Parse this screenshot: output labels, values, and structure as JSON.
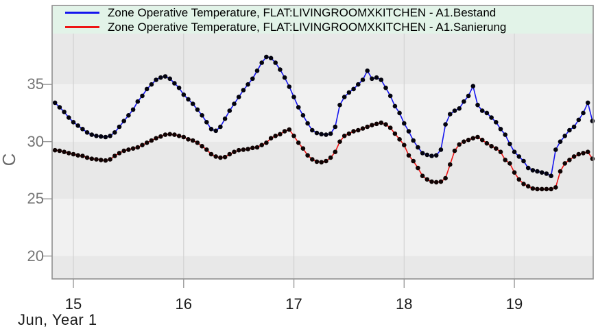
{
  "figure": {
    "background": "#ffffff",
    "panel": {
      "band_dark": "#e8e8e8",
      "band_light": "#f1f1f1",
      "border": "#8f8f8f",
      "grid_vertical": "#d2d2d2",
      "tick": "#9b9b9b"
    },
    "legend_background": "#e2f3e8"
  },
  "axes": {
    "y_title": "C",
    "x_title": "Jun, Year 1",
    "y_tick_labels": [
      "35",
      "30",
      "25",
      "20"
    ],
    "x_tick_labels": [
      "15",
      "16",
      "17",
      "18",
      "19"
    ]
  },
  "chart_data": {
    "type": "line",
    "title": "",
    "xlabel": "Jun, Year 1",
    "ylabel": "C",
    "x_ticks": [
      15,
      16,
      17,
      18,
      19
    ],
    "y_ticks": [
      35,
      30,
      25,
      20
    ],
    "xlim": [
      14.807,
      19.715
    ],
    "ylim": [
      18.0,
      41.9
    ],
    "x_start_day": 14.833333,
    "x_step_days": 0.0416667,
    "x_unit": "day of June, Year 1 (hourly samples)",
    "grid": "alternating horizontal bands, vertical day gridlines",
    "legend_position": "top inside",
    "series": [
      {
        "name": "Zone Operative Temperature, FLAT:LIVINGROOMXKITCHEN - A1.Bestand",
        "line_color": "#1414ee",
        "marker_color": "#03030f",
        "values": [
          33.4,
          33.0,
          32.6,
          32.1,
          31.7,
          31.4,
          31.1,
          30.8,
          30.6,
          30.5,
          30.45,
          30.4,
          30.5,
          30.8,
          31.3,
          31.8,
          32.3,
          32.8,
          33.5,
          34.0,
          34.6,
          35.0,
          35.4,
          35.6,
          35.7,
          35.5,
          35.1,
          34.7,
          34.1,
          33.7,
          33.3,
          32.8,
          32.3,
          31.7,
          31.1,
          30.95,
          31.3,
          32.0,
          32.7,
          33.3,
          33.9,
          34.5,
          35.0,
          35.5,
          36.2,
          36.9,
          37.4,
          37.3,
          36.9,
          36.3,
          35.6,
          34.8,
          33.9,
          33.0,
          32.3,
          31.6,
          31.0,
          30.75,
          30.65,
          30.6,
          30.7,
          31.3,
          33.2,
          33.9,
          34.3,
          34.6,
          35.0,
          35.4,
          36.2,
          35.5,
          35.6,
          35.4,
          34.7,
          34.0,
          33.1,
          32.5,
          31.6,
          30.9,
          30.1,
          29.5,
          29.0,
          28.85,
          28.75,
          28.8,
          29.3,
          31.5,
          32.4,
          32.7,
          32.9,
          33.5,
          34.0,
          34.85,
          33.2,
          32.7,
          32.5,
          32.1,
          31.7,
          31.1,
          30.6,
          29.8,
          29.1,
          28.7,
          28.3,
          27.7,
          27.5,
          27.4,
          27.3,
          27.2,
          27.0,
          29.3,
          30.0,
          30.5,
          31.0,
          31.3,
          31.9,
          32.5,
          33.4,
          31.8
        ]
      },
      {
        "name": "Zone Operative Temperature, FLAT:LIVINGROOMXKITCHEN - A1.Sanierung",
        "line_color": "#ee1414",
        "marker_color": "#0f0303",
        "values": [
          29.25,
          29.2,
          29.1,
          29.0,
          28.9,
          28.8,
          28.75,
          28.6,
          28.5,
          28.45,
          28.4,
          28.35,
          28.45,
          28.75,
          29.0,
          29.2,
          29.3,
          29.4,
          29.5,
          29.7,
          29.9,
          30.1,
          30.3,
          30.45,
          30.6,
          30.65,
          30.6,
          30.5,
          30.4,
          30.2,
          30.1,
          29.9,
          29.6,
          29.3,
          28.9,
          28.7,
          28.6,
          28.65,
          28.9,
          29.1,
          29.25,
          29.3,
          29.35,
          29.45,
          29.5,
          29.7,
          29.9,
          30.3,
          30.5,
          30.65,
          30.9,
          31.05,
          30.5,
          29.9,
          29.4,
          28.8,
          28.45,
          28.25,
          28.2,
          28.3,
          28.6,
          29.1,
          30.0,
          30.5,
          30.7,
          30.9,
          31.0,
          31.15,
          31.3,
          31.45,
          31.55,
          31.65,
          31.5,
          31.2,
          30.7,
          30.2,
          29.7,
          28.8,
          28.3,
          27.7,
          27.0,
          26.7,
          26.5,
          26.45,
          26.5,
          26.8,
          28.0,
          29.2,
          29.75,
          30.0,
          30.15,
          30.3,
          30.4,
          30.15,
          29.85,
          29.6,
          29.4,
          29.1,
          28.4,
          28.1,
          27.3,
          26.7,
          26.3,
          26.1,
          25.9,
          25.85,
          25.85,
          25.85,
          25.85,
          26.0,
          27.4,
          28.1,
          28.4,
          28.7,
          28.9,
          29.0,
          29.1,
          28.5
        ]
      }
    ]
  }
}
